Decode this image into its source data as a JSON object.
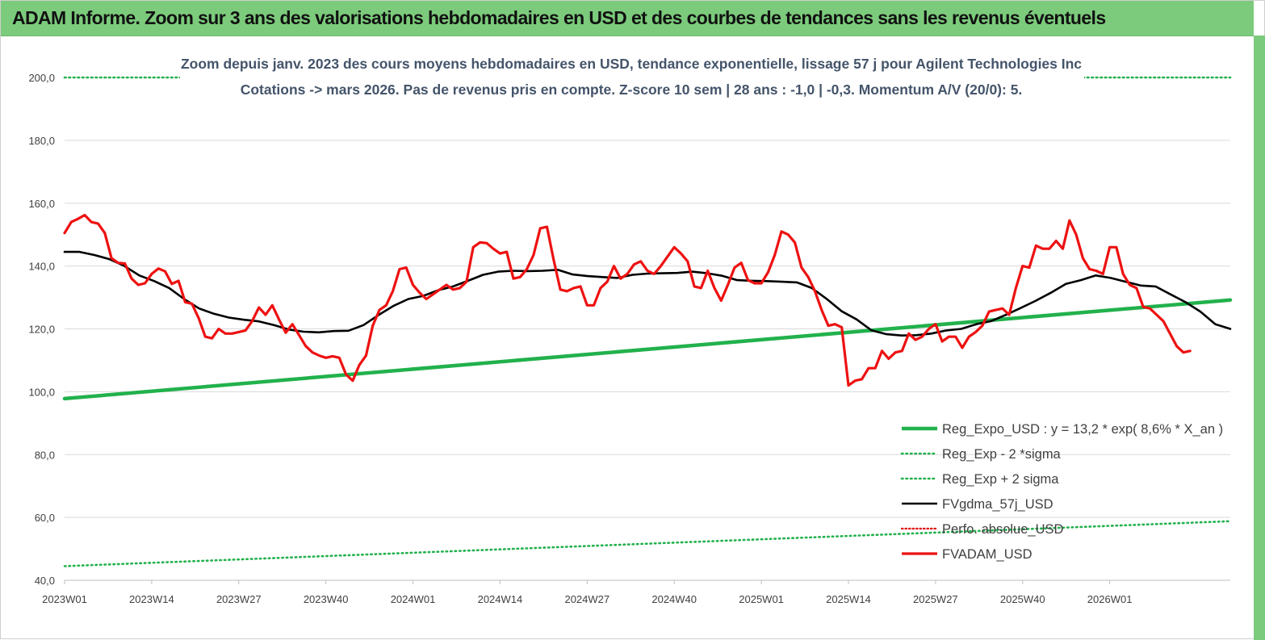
{
  "banner": {
    "title": "ADAM Informe. Zoom sur 3 ans des valorisations hebdomadaires en USD et des courbes de tendances sans les revenus éventuels"
  },
  "colors": {
    "banner_bg": "#7ccb7c",
    "trend": "#22b14c",
    "sigma": "#22b14c",
    "gdma": "#000000",
    "perf": "#e00000",
    "price": "#ee1111",
    "grid": "#d9d9d9"
  },
  "chart_data": {
    "type": "line",
    "title_lines": [
      "Zoom depuis janv. 2023 des cours moyens hebdomadaires en USD, tendance exponentielle, lissage 57 j pour Agilent Technologies Inc",
      "Cotations -> mars 2026. Pas de revenus pris en  compte. Z-score 10 sem  | 28 ans : -1,0 | -0,3. Momentum A/V (20/0): 5."
    ],
    "ylim": [
      40,
      200
    ],
    "y_ticks": [
      40,
      60,
      80,
      100,
      120,
      140,
      160,
      180,
      200
    ],
    "y_tick_labels": [
      "40,0",
      "60,0",
      "80,0",
      "100,0",
      "120,0",
      "140,0",
      "160,0",
      "180,0",
      "200,0"
    ],
    "x_tick_labels": [
      "2023W01",
      "2023W14",
      "2023W27",
      "2023W40",
      "2024W01",
      "2024W14",
      "2024W27",
      "2024W40",
      "2025W01",
      "2025W14",
      "2025W27",
      "2025W40",
      "2026W01"
    ],
    "x_tick_index": [
      0,
      13,
      26,
      39,
      52,
      65,
      78,
      91,
      104,
      117,
      130,
      143,
      156
    ],
    "n_points": 175,
    "grid": true,
    "legend_position": "bottom-right",
    "legend": [
      "Reg_Expo_USD : y = 13,2 * exp( 8,6% *  X_an )",
      "Reg_Exp - 2 *sigma",
      "Reg_Exp + 2 sigma",
      "FVgdma_57j_USD",
      "Perfo. absolue_USD",
      "FVADAM_USD"
    ],
    "series": [
      {
        "name": "Reg_Expo_USD : y = 13,2 * exp( 8,6% *  X_an )",
        "style": "trend",
        "points": [
          [
            0,
            97.8
          ],
          [
            174,
            129.2
          ]
        ]
      },
      {
        "name": "Reg_Exp - 2 *sigma",
        "style": "sigma",
        "points": [
          [
            0,
            44.5
          ],
          [
            174,
            58.8
          ]
        ]
      },
      {
        "name": "Reg_Exp + 2 sigma",
        "style": "sigma-upper",
        "points": [
          [
            0,
            200
          ],
          [
            19,
            200
          ],
          [
            152,
            200
          ],
          [
            174,
            200
          ]
        ]
      },
      {
        "name": "FVgdma_57j_USD",
        "style": "gdma",
        "points": [
          [
            0,
            144.5
          ],
          [
            3,
            144.5
          ],
          [
            6,
            143.5
          ],
          [
            9,
            142.2
          ],
          [
            12,
            140
          ],
          [
            15,
            137
          ],
          [
            18,
            135.2
          ],
          [
            21,
            133
          ],
          [
            24,
            129.5
          ],
          [
            27,
            126.5
          ],
          [
            30,
            124.8
          ],
          [
            33,
            123.6
          ],
          [
            36,
            122.9
          ],
          [
            39,
            122.4
          ],
          [
            42,
            121.2
          ],
          [
            45,
            119.8
          ],
          [
            48,
            119.1
          ],
          [
            51,
            118.9
          ],
          [
            54,
            119.3
          ],
          [
            57,
            119.4
          ],
          [
            60,
            121.2
          ],
          [
            63,
            124.4
          ],
          [
            66,
            127.3
          ],
          [
            69,
            129.5
          ],
          [
            72,
            130.5
          ],
          [
            75,
            132.3
          ],
          [
            78,
            133.5
          ],
          [
            81,
            135.3
          ],
          [
            84,
            137.2
          ],
          [
            87,
            138.2
          ],
          [
            90,
            138.5
          ],
          [
            93,
            138.4
          ],
          [
            96,
            138.5
          ],
          [
            99,
            138.8
          ],
          [
            102,
            137.3
          ],
          [
            105,
            136.8
          ],
          [
            108,
            136.5
          ],
          [
            111,
            136.2
          ],
          [
            114,
            137.2
          ],
          [
            117,
            137.6
          ],
          [
            120,
            137.7
          ],
          [
            123,
            137.8
          ],
          [
            126,
            138.2
          ],
          [
            129,
            137.7
          ],
          [
            132,
            136.9
          ],
          [
            135,
            135.5
          ],
          [
            138,
            135.3
          ],
          [
            141,
            135.2
          ],
          [
            144,
            135.0
          ],
          [
            147,
            134.8
          ],
          [
            150,
            133.0
          ],
          [
            153,
            129.5
          ],
          [
            156,
            125.6
          ],
          [
            159,
            123
          ],
          [
            162,
            119.5
          ],
          [
            165,
            118.3
          ],
          [
            168,
            117.9
          ],
          [
            171,
            118
          ],
          [
            174,
            118.5
          ],
          [
            177,
            119.5
          ],
          [
            180,
            120
          ],
          [
            183,
            121.5
          ],
          [
            186,
            122.5
          ],
          [
            189,
            124.5
          ],
          [
            192,
            126.7
          ],
          [
            195,
            129
          ],
          [
            198,
            131.5
          ],
          [
            201,
            134.3
          ],
          [
            204,
            135.5
          ],
          [
            207,
            137
          ],
          [
            210,
            136.2
          ],
          [
            213,
            135
          ],
          [
            216,
            133.8
          ],
          [
            219,
            133.5
          ],
          [
            222,
            131
          ],
          [
            225,
            128.5
          ],
          [
            228,
            125.5
          ],
          [
            231,
            121.5
          ],
          [
            234,
            120
          ]
        ]
      },
      {
        "name": "Perfo. absolue_USD",
        "style": "perf",
        "points": []
      },
      {
        "name": "FVADAM_USD",
        "style": "price",
        "points": [
          [
            0,
            150.5
          ],
          [
            1,
            154
          ],
          [
            2,
            155
          ],
          [
            3,
            156.2
          ],
          [
            4,
            154
          ],
          [
            5,
            153.5
          ],
          [
            6,
            150.5
          ],
          [
            7,
            142.5
          ],
          [
            8,
            141
          ],
          [
            9,
            140.8
          ],
          [
            10,
            136
          ],
          [
            11,
            134
          ],
          [
            12,
            134.5
          ],
          [
            13,
            137.5
          ],
          [
            14,
            139.2
          ],
          [
            15,
            138.3
          ],
          [
            16,
            134.3
          ],
          [
            17,
            135.3
          ],
          [
            18,
            128.5
          ],
          [
            19,
            128
          ],
          [
            20,
            123.5
          ],
          [
            21,
            117.5
          ],
          [
            22,
            117
          ],
          [
            23,
            120
          ],
          [
            24,
            118.5
          ],
          [
            25,
            118.5
          ],
          [
            26,
            119
          ],
          [
            27,
            119.5
          ],
          [
            28,
            122.5
          ],
          [
            29,
            126.8
          ],
          [
            30,
            124.5
          ],
          [
            31,
            127.5
          ],
          [
            32,
            123
          ],
          [
            33,
            118.8
          ],
          [
            34,
            121.5
          ],
          [
            35,
            118
          ],
          [
            36,
            114.5
          ],
          [
            37,
            112.5
          ],
          [
            38,
            111.5
          ],
          [
            39,
            110.8
          ],
          [
            40,
            111.3
          ],
          [
            41,
            110.8
          ],
          [
            42,
            105.5
          ],
          [
            43,
            103.5
          ],
          [
            44,
            108.5
          ],
          [
            45,
            111.5
          ],
          [
            46,
            121
          ],
          [
            47,
            126
          ],
          [
            48,
            127.5
          ],
          [
            49,
            132
          ],
          [
            50,
            139
          ],
          [
            51,
            139.5
          ],
          [
            52,
            134
          ],
          [
            53,
            131.5
          ],
          [
            54,
            129.5
          ],
          [
            55,
            131
          ],
          [
            56,
            132.5
          ],
          [
            57,
            134
          ],
          [
            58,
            132.5
          ],
          [
            59,
            133
          ],
          [
            60,
            135
          ],
          [
            61,
            146
          ],
          [
            62,
            147.5
          ],
          [
            63,
            147.3
          ],
          [
            64,
            145.5
          ],
          [
            65,
            144
          ],
          [
            66,
            144.5
          ],
          [
            67,
            136
          ],
          [
            68,
            136.5
          ],
          [
            69,
            139
          ],
          [
            70,
            143.5
          ],
          [
            71,
            152
          ],
          [
            72,
            152.5
          ],
          [
            73,
            142
          ],
          [
            74,
            132.5
          ],
          [
            75,
            132
          ],
          [
            76,
            133
          ],
          [
            77,
            133.5
          ],
          [
            78,
            127.5
          ],
          [
            79,
            127.5
          ],
          [
            80,
            133
          ],
          [
            81,
            135
          ],
          [
            82,
            140
          ],
          [
            83,
            136
          ],
          [
            84,
            137.5
          ],
          [
            85,
            140.5
          ],
          [
            86,
            141.5
          ],
          [
            87,
            138.5
          ],
          [
            88,
            137.5
          ],
          [
            89,
            140
          ],
          [
            90,
            143
          ],
          [
            91,
            146
          ],
          [
            92,
            144
          ],
          [
            93,
            141.5
          ],
          [
            94,
            133.5
          ],
          [
            95,
            133
          ],
          [
            96,
            138.5
          ],
          [
            97,
            133
          ],
          [
            98,
            129
          ],
          [
            99,
            134
          ],
          [
            100,
            139.5
          ],
          [
            101,
            141
          ],
          [
            102,
            135.5
          ],
          [
            103,
            134.5
          ],
          [
            104,
            134.5
          ],
          [
            105,
            138
          ],
          [
            106,
            143.5
          ],
          [
            107,
            151
          ],
          [
            108,
            150
          ],
          [
            109,
            147.5
          ],
          [
            110,
            139.5
          ],
          [
            111,
            136.5
          ],
          [
            112,
            132
          ],
          [
            113,
            126
          ],
          [
            114,
            121
          ],
          [
            115,
            121.5
          ],
          [
            116,
            120.5
          ],
          [
            117,
            102
          ],
          [
            118,
            103.5
          ],
          [
            119,
            104
          ],
          [
            120,
            107.5
          ],
          [
            121,
            107.5
          ],
          [
            122,
            113
          ],
          [
            123,
            110.5
          ],
          [
            124,
            112.5
          ],
          [
            125,
            113
          ],
          [
            126,
            118.5
          ],
          [
            127,
            116.5
          ],
          [
            128,
            117.5
          ],
          [
            129,
            120
          ],
          [
            130,
            121.5
          ],
          [
            131,
            116
          ],
          [
            132,
            117.5
          ],
          [
            133,
            117.5
          ],
          [
            134,
            114
          ],
          [
            135,
            117.5
          ],
          [
            136,
            119
          ],
          [
            137,
            121
          ],
          [
            138,
            125.5
          ],
          [
            139,
            126
          ],
          [
            140,
            126.5
          ],
          [
            141,
            124.5
          ],
          [
            142,
            133
          ],
          [
            143,
            140
          ],
          [
            144,
            139.5
          ],
          [
            145,
            146.5
          ],
          [
            146,
            145.5
          ],
          [
            147,
            145.5
          ],
          [
            148,
            148
          ],
          [
            149,
            145.5
          ],
          [
            150,
            154.5
          ],
          [
            151,
            150
          ],
          [
            152,
            142.5
          ],
          [
            153,
            139
          ],
          [
            154,
            138.5
          ],
          [
            155,
            137.5
          ],
          [
            156,
            146
          ],
          [
            157,
            146
          ],
          [
            158,
            137.5
          ],
          [
            159,
            134
          ],
          [
            160,
            133
          ],
          [
            161,
            127
          ],
          [
            162,
            126.5
          ],
          [
            163,
            124.5
          ],
          [
            164,
            122.5
          ],
          [
            165,
            118.5
          ],
          [
            166,
            114.5
          ],
          [
            167,
            112.5
          ],
          [
            168,
            113
          ]
        ]
      }
    ]
  }
}
